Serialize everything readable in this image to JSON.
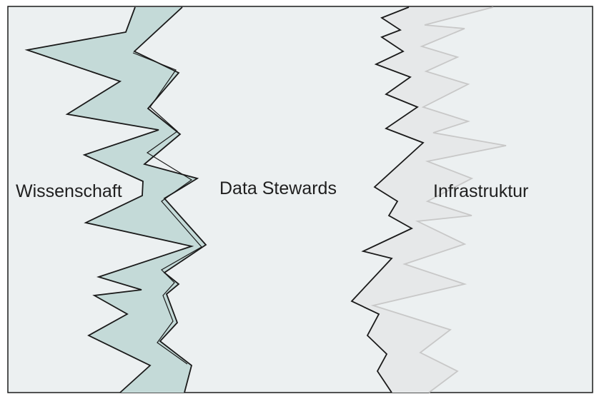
{
  "zones": [
    {
      "id": "science",
      "label": "Wissenschaft"
    },
    {
      "id": "stewards",
      "label": "Data Stewards"
    },
    {
      "id": "infrastructure",
      "label": "Infrastruktur"
    }
  ],
  "colors": {
    "canvas": "#ecf0f1",
    "frame": "#1a1a1a",
    "science_band": "#c4dad8",
    "border_dark": "#1a1a1a",
    "border_light": "#c8c8c8",
    "light_band": "#e6e8e9"
  }
}
